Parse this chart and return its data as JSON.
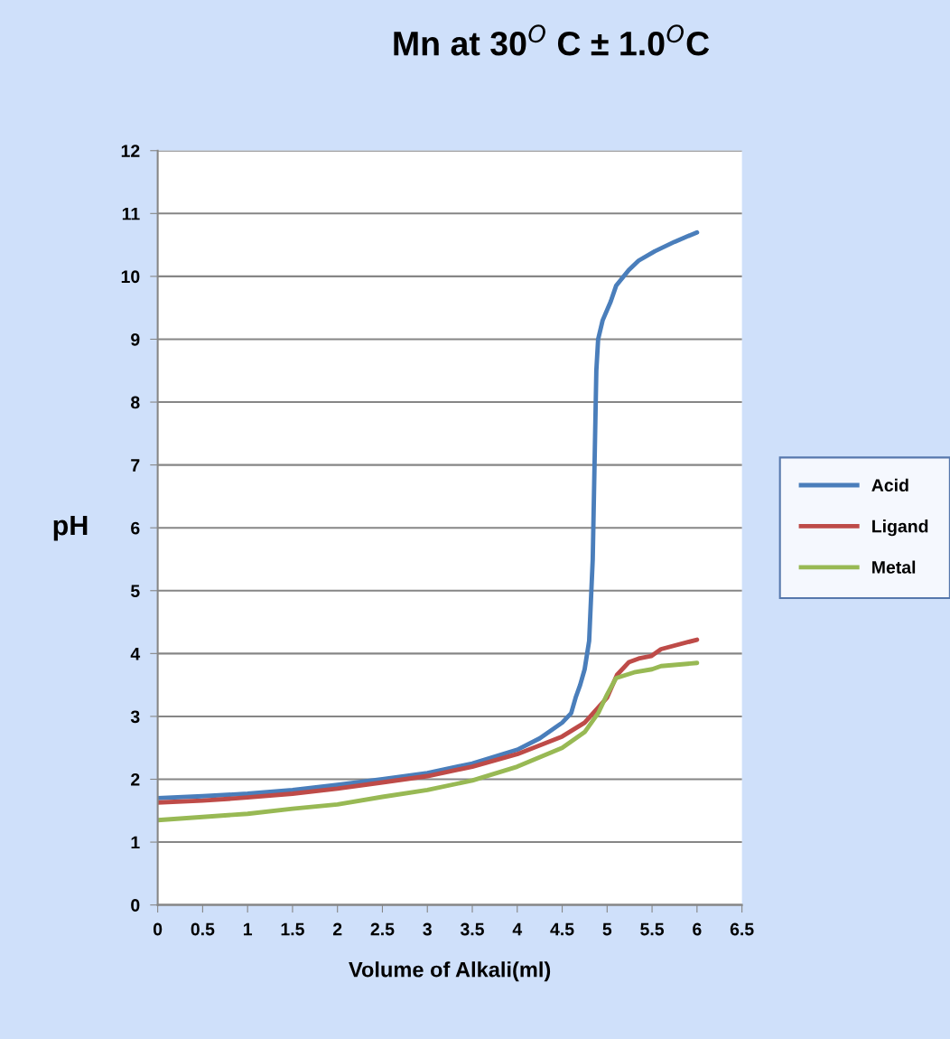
{
  "chart_data": {
    "type": "line",
    "title": "Mn at 30$^{O}$ C ± 1.0$^{O}$C",
    "xlabel": "Volume of Alkali(ml)",
    "ylabel": "pH",
    "xlim": [
      0,
      6.5
    ],
    "xticks": [
      0,
      0.5,
      1,
      1.5,
      2,
      2.5,
      3,
      3.5,
      4,
      4.5,
      5,
      5.5,
      6,
      6.5
    ],
    "ylim": [
      0,
      12
    ],
    "yticks": [
      0,
      1,
      2,
      3,
      4,
      5,
      6,
      7,
      8,
      9,
      10,
      11,
      12
    ],
    "grid": "y",
    "legend": "right",
    "marker": "none",
    "line_style": "solid",
    "series": [
      {
        "name": "Acid",
        "color": "#4a7ebb",
        "x": [
          0,
          0.5,
          1,
          1.5,
          2,
          2.5,
          3,
          3.5,
          4,
          4.25,
          4.5,
          4.6,
          4.65,
          4.7,
          4.75,
          4.8,
          4.84,
          4.86,
          4.88,
          4.9,
          4.95,
          5.04,
          5.1,
          5.24,
          5.35,
          5.53,
          5.75,
          6
        ],
        "values": [
          1.7,
          1.73,
          1.77,
          1.83,
          1.91,
          2.0,
          2.1,
          2.25,
          2.47,
          2.65,
          2.9,
          3.05,
          3.3,
          3.5,
          3.75,
          4.2,
          5.5,
          7.0,
          8.5,
          9.0,
          9.3,
          9.6,
          9.85,
          10.1,
          10.25,
          10.4,
          10.55,
          10.7
        ]
      },
      {
        "name": "Ligand",
        "color": "#be4b48",
        "x": [
          0,
          0.5,
          1,
          1.5,
          2,
          2.5,
          3,
          3.5,
          4,
          4.5,
          4.75,
          5,
          5.11,
          5.24,
          5.35,
          5.49,
          5.6,
          6
        ],
        "values": [
          1.63,
          1.66,
          1.71,
          1.77,
          1.85,
          1.95,
          2.05,
          2.2,
          2.4,
          2.68,
          2.9,
          3.3,
          3.66,
          3.86,
          3.92,
          3.96,
          4.07,
          4.22
        ]
      },
      {
        "name": "Metal",
        "color": "#98b954",
        "x": [
          0,
          0.5,
          1,
          1.5,
          2,
          2.5,
          3,
          3.5,
          4,
          4.5,
          4.75,
          4.9,
          5.0,
          5.1,
          5.3,
          5.5,
          5.6,
          6
        ],
        "values": [
          1.35,
          1.4,
          1.45,
          1.53,
          1.6,
          1.72,
          1.83,
          1.98,
          2.2,
          2.5,
          2.75,
          3.05,
          3.35,
          3.61,
          3.7,
          3.75,
          3.8,
          3.85
        ]
      }
    ]
  }
}
